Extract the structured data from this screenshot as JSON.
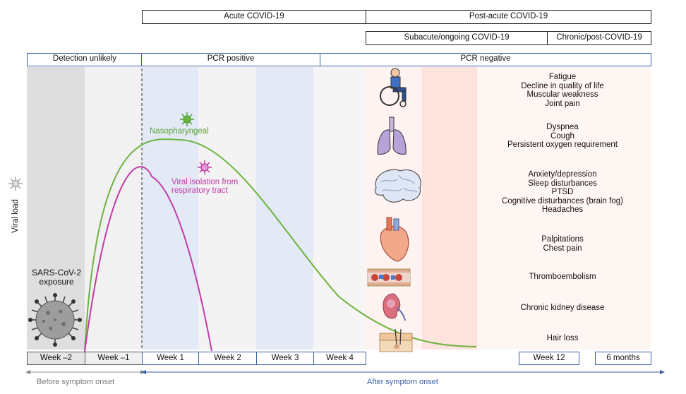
{
  "phases": {
    "acute": "Acute COVID-19",
    "post_acute": "Post-acute COVID-19",
    "subacute": "Subacute/ongoing COVID-19",
    "chronic": "Chronic/post-COVID-19"
  },
  "pcr": {
    "detection_unlikely": "Detection unlikely",
    "positive": "PCR positive",
    "negative": "PCR negative"
  },
  "y_axis_label": "Viral load",
  "curves": {
    "nasopharyngeal": "Nasopharyngeal",
    "viral_isolation_line1": "Viral isolation from",
    "viral_isolation_line2": "respiratory tract"
  },
  "exposure": {
    "line1": "SARS-CoV-2",
    "line2": "exposure"
  },
  "symptoms": {
    "general": [
      "Fatigue",
      "Decline in quality of life",
      "Muscular weakness",
      "Joint pain"
    ],
    "pulmonary": [
      "Dyspnea",
      "Cough",
      "Persistent oxygen requirement"
    ],
    "neuro": [
      "Anxiety/depression",
      "Sleep disturbances",
      "PTSD",
      "Cognitive disturbances (brain fog)",
      "Headaches"
    ],
    "cardiac": [
      "Palpitations",
      "Chest pain"
    ],
    "vascular": [
      "Thromboembolism"
    ],
    "renal": [
      "Chronic kidney disease"
    ],
    "skin": [
      "Hair loss"
    ]
  },
  "weeks": [
    "Week –2",
    "Week –1",
    "Week 1",
    "Week 2",
    "Week 3",
    "Week 4",
    "Week 12",
    "6 months"
  ],
  "bottom": {
    "before": "Before symptom onset",
    "after": "After symptom onset"
  },
  "icons": [
    "virus-particle-icon",
    "wheelchair-person-icon",
    "lungs-icon",
    "brain-icon",
    "heart-icon",
    "blood-vessel-icon",
    "kidney-icon",
    "skin-hair-icon"
  ],
  "colors": {
    "nasopharyngeal": "#6db33f",
    "viral_isolation": "#c23ba6",
    "pcr_border": "#3a5ea8",
    "blue_band": "#e3e9f5",
    "grey_band": "#dddddd",
    "pink_band": "#fde6e1"
  }
}
